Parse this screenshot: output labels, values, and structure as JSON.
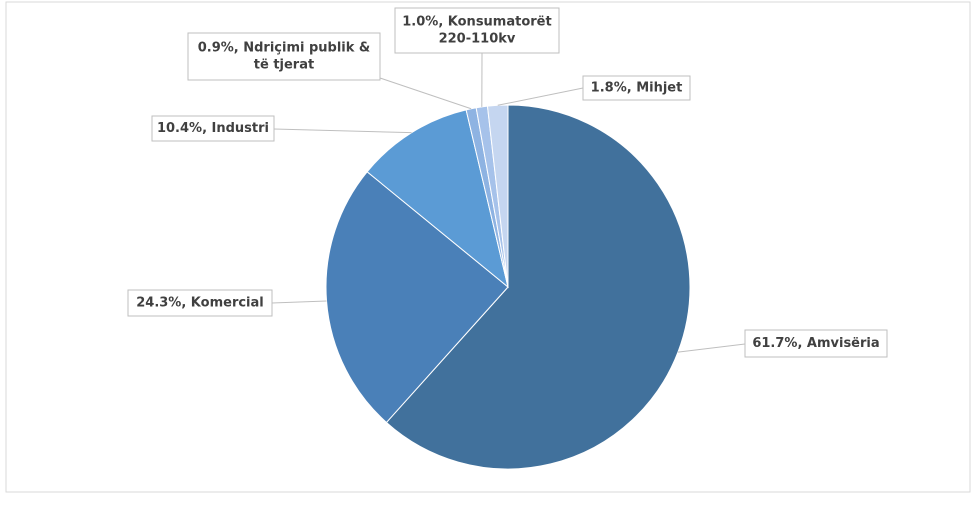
{
  "chart_data": {
    "type": "pie",
    "values": [
      61.7,
      24.3,
      10.4,
      0.9,
      1.0,
      1.8
    ],
    "value_labels": [
      [
        "61.7%, Amvisëria"
      ],
      [
        "24.3%, Komercial"
      ],
      [
        "10.4%, Industri"
      ],
      [
        "0.9%, Ndriçimi publik &",
        "të tjerat"
      ],
      [
        "1.0%, Konsumatorët",
        "220-110kv"
      ],
      [
        "1.8%, Mihjet"
      ]
    ],
    "colors": [
      "#41719c",
      "#4a80b8",
      "#5b9bd5",
      "#8eb3e2",
      "#a6c2ea",
      "#c5d6f0"
    ]
  }
}
